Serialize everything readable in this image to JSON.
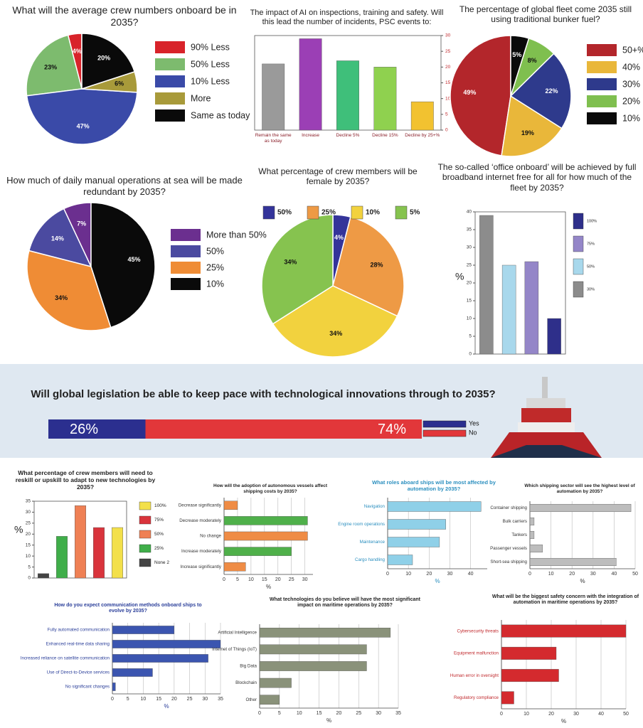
{
  "chart_data": [
    {
      "type": "pie",
      "title": "What will the average crew numbers onboard be in 2035?",
      "categories": [
        "90% Less",
        "50% Less",
        "10% Less",
        "More",
        "Same as today"
      ],
      "values": [
        4,
        23,
        47,
        6,
        20
      ],
      "value_labels": [
        "4%",
        "23%",
        "47%",
        "6%",
        "20%"
      ],
      "colors": [
        "#d8232a",
        "#7dbb6e",
        "#3a4aa8",
        "#a89a3a",
        "#0a0a0a"
      ],
      "legend": "right"
    },
    {
      "type": "bar",
      "title": "The impact of AI on inspections, training and safety. Will this lead the number of incidents, PSC events to:",
      "categories": [
        "Remain the same as today",
        "Increase",
        "Decline 5%",
        "Decline 15%",
        "Decline by 25+%"
      ],
      "values": [
        21,
        29,
        22,
        20,
        9
      ],
      "colors": [
        "#9a9a9a",
        "#9b3fb5",
        "#3fbf7a",
        "#8fd14f",
        "#f2c230"
      ],
      "ylim": [
        0,
        30
      ],
      "yticks": [
        0,
        5,
        10,
        15,
        20,
        25,
        30
      ],
      "y_axis": "right"
    },
    {
      "type": "pie",
      "title": "The percentage of global fleet come 2035 still using traditional bunker fuel?",
      "categories": [
        "50+%",
        "40%",
        "30%",
        "20%",
        "10%"
      ],
      "values": [
        49,
        19,
        22,
        8,
        5
      ],
      "value_labels": [
        "49%",
        "19%",
        "22%",
        "8%",
        "5%"
      ],
      "colors": [
        "#b3262b",
        "#e9b73a",
        "#2e3a8c",
        "#7fbf4f",
        "#0a0a0a"
      ],
      "legend": "right"
    },
    {
      "type": "pie",
      "title": "How much of daily manual operations at sea will be made redundant by 2035?",
      "categories": [
        "More than 50%",
        "50%",
        "25%",
        "10%"
      ],
      "values": [
        7,
        14,
        34,
        45
      ],
      "value_labels": [
        "7%",
        "14%",
        "34%",
        "45%"
      ],
      "colors": [
        "#6b2f8f",
        "#4b4aa0",
        "#ef8c35",
        "#0a0a0a"
      ],
      "legend": "right"
    },
    {
      "type": "pie",
      "title": "What percentage of crew members will be female by 2035?",
      "categories": [
        "50%",
        "25%",
        "10%",
        "5%"
      ],
      "values": [
        4,
        28,
        34,
        34
      ],
      "value_labels": [
        "4%",
        "28%",
        "34%",
        "34%"
      ],
      "colors": [
        "#34349a",
        "#ee9a45",
        "#f2d23e",
        "#86c34f"
      ],
      "legend": "top"
    },
    {
      "type": "bar",
      "title": "The so-called ‘office onboard’ will be achieved by full broadband internet free for all for how much of the fleet by 2035?",
      "categories": [
        "30%",
        "50%",
        "75%",
        "100%"
      ],
      "values": [
        39,
        25,
        26,
        10
      ],
      "colors": [
        "#8c8c8c",
        "#a8d8ec",
        "#9486c8",
        "#2e2f8a"
      ],
      "ylabel": "%",
      "ylim": [
        0,
        40
      ],
      "yticks": [
        0,
        5,
        10,
        15,
        20,
        25,
        30,
        35,
        40
      ],
      "y_axis": "left",
      "legend": "right"
    },
    {
      "type": "stacked_bar",
      "title": "Will global legislation be able to keep pace with technological innovations through to 2035?",
      "series": [
        {
          "name": "Yes",
          "color": "#2b2f8f",
          "values": [
            26
          ],
          "value_labels": [
            "26%"
          ]
        },
        {
          "name": "No",
          "color": "#e2373a",
          "values": [
            74
          ],
          "value_labels": [
            "74%"
          ]
        }
      ],
      "xlim": [
        0,
        100
      ]
    },
    {
      "type": "bar",
      "title": "What percentage of crew members will need to reskill or upskill to adapt to new technologies by 2035?",
      "categories": [
        "None 2",
        "25%",
        "50%",
        "75%",
        "100%"
      ],
      "values": [
        2,
        19,
        33,
        23,
        23
      ],
      "colors": [
        "#444444",
        "#3fae49",
        "#ef8054",
        "#d9343c",
        "#f3e04a"
      ],
      "ylabel": "%",
      "ylim": [
        0,
        35
      ],
      "yticks": [
        0,
        5,
        10,
        15,
        20,
        25,
        30,
        35
      ],
      "y_axis": "left",
      "legend": "right"
    },
    {
      "type": "hbar",
      "title": "How will the adoption of autonomous vessels affect shipping costs by 2035?",
      "categories": [
        "Decrease significantly",
        "Decrease moderately",
        "No change",
        "Increase moderately",
        "Increase significantly"
      ],
      "values": [
        5,
        31,
        31,
        25,
        8
      ],
      "colors": [
        "#ef8c45",
        "#4fb04a",
        "#ef8c45",
        "#4fb04a",
        "#ef8c45"
      ],
      "xlabel": "%",
      "xlim": [
        0,
        33
      ],
      "xticks": [
        0,
        5,
        10,
        15,
        20,
        25,
        30
      ],
      "grid": true
    },
    {
      "type": "hbar",
      "title": "What roles aboard ships will be most affected by automation by 2035?",
      "categories": [
        "Navigation",
        "Engine room operations",
        "Maintenance",
        "Cargo handling"
      ],
      "values": [
        45,
        28,
        25,
        12
      ],
      "colors": [
        "#8fd0e8",
        "#8fd0e8",
        "#8fd0e8",
        "#8fd0e8"
      ],
      "xlabel": "%",
      "xlim": [
        0,
        48
      ],
      "xticks": [
        0,
        10,
        20,
        30,
        40
      ],
      "grid": true,
      "title_color": "#2b8fbf"
    },
    {
      "type": "hbar",
      "title": "Which shipping sector will see the highest level of automation by 2035?",
      "categories": [
        "Container shipping",
        "Bulk carriers",
        "Tankers",
        "Passenger vessels",
        "Short-sea shipping"
      ],
      "values": [
        48,
        2,
        2,
        6,
        41
      ],
      "colors": [
        "#bdbdbd",
        "#bdbdbd",
        "#bdbdbd",
        "#bdbdbd",
        "#bdbdbd"
      ],
      "xlabel": "%",
      "xlim": [
        0,
        50
      ],
      "xticks": [
        0,
        10,
        20,
        30,
        40,
        50
      ],
      "grid": true
    },
    {
      "type": "hbar",
      "title": "How do you expect communication methods onboard ships to evolve by 2035?",
      "categories": [
        "Fully automated communication",
        "Enhanced real-time data sharing",
        "Increased reliance on satellite communication",
        "Use of Direct-to-Device services",
        "No significant changes"
      ],
      "values": [
        20,
        35,
        31,
        13,
        1
      ],
      "colors": [
        "#3b55b0",
        "#3b55b0",
        "#3b55b0",
        "#3b55b0",
        "#3b55b0"
      ],
      "xlabel": "%",
      "xlim": [
        0,
        35
      ],
      "xticks": [
        0,
        5,
        10,
        15,
        20,
        25,
        30,
        35
      ],
      "grid": true,
      "title_color": "#2b3f9a"
    },
    {
      "type": "hbar",
      "title": "What technologies do you believe will have the most significant impact on maritime operations by 2035?",
      "categories": [
        "Artificial Intelligence",
        "Internet of Things (IoT)",
        "Big Data",
        "Blockchain",
        "Other"
      ],
      "values": [
        33,
        27,
        27,
        8,
        5
      ],
      "colors": [
        "#8a927a",
        "#8a927a",
        "#8a927a",
        "#8a927a",
        "#8a927a"
      ],
      "xlabel": "%",
      "xlim": [
        0,
        35
      ],
      "xticks": [
        0,
        5,
        10,
        15,
        20,
        25,
        30,
        35
      ],
      "grid": true
    },
    {
      "type": "hbar",
      "title": "What will be the biggest safety concern with the integration of automation in maritime operations by 2035?",
      "categories": [
        "Cybersecurity threats",
        "Equipment malfunction",
        "Human error in oversight",
        "Regulatory compliance"
      ],
      "values": [
        50,
        22,
        23,
        5
      ],
      "colors": [
        "#d42a2e",
        "#d42a2e",
        "#d42a2e",
        "#d42a2e"
      ],
      "xlabel": "%",
      "xlim": [
        0,
        50
      ],
      "xticks": [
        0,
        10,
        20,
        30,
        40,
        50
      ],
      "grid": true,
      "label_color": "#c0282c"
    }
  ]
}
